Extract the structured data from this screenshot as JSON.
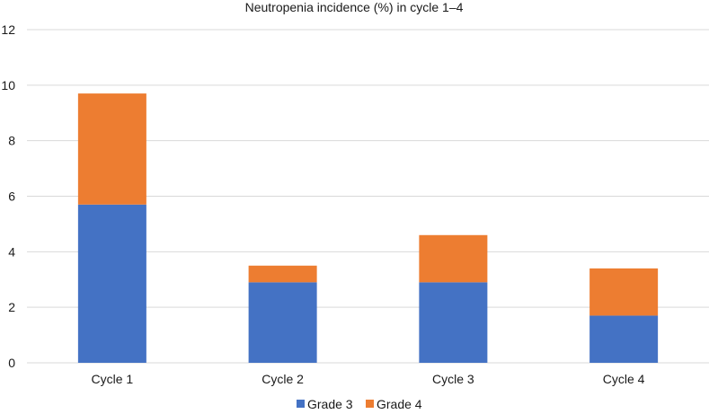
{
  "chart_data": {
    "type": "bar",
    "stacked": true,
    "title": "Neutropenia incidence (%) in cycle 1–4",
    "xlabel": "",
    "ylabel": "",
    "categories": [
      "Cycle 1",
      "Cycle 2",
      "Cycle 3",
      "Cycle 4"
    ],
    "series": [
      {
        "name": "Grade 3",
        "values": [
          5.7,
          2.9,
          2.9,
          1.7
        ],
        "color": "#4472C4"
      },
      {
        "name": "Grade 4",
        "values": [
          4.0,
          0.6,
          1.7,
          1.7
        ],
        "color": "#ED7D31"
      }
    ],
    "ylim": [
      0,
      12
    ],
    "yticks": [
      0,
      2,
      4,
      6,
      8,
      10,
      12
    ],
    "grid": true,
    "gridline_color": "#D9D9D9",
    "legend_position": "bottom"
  }
}
